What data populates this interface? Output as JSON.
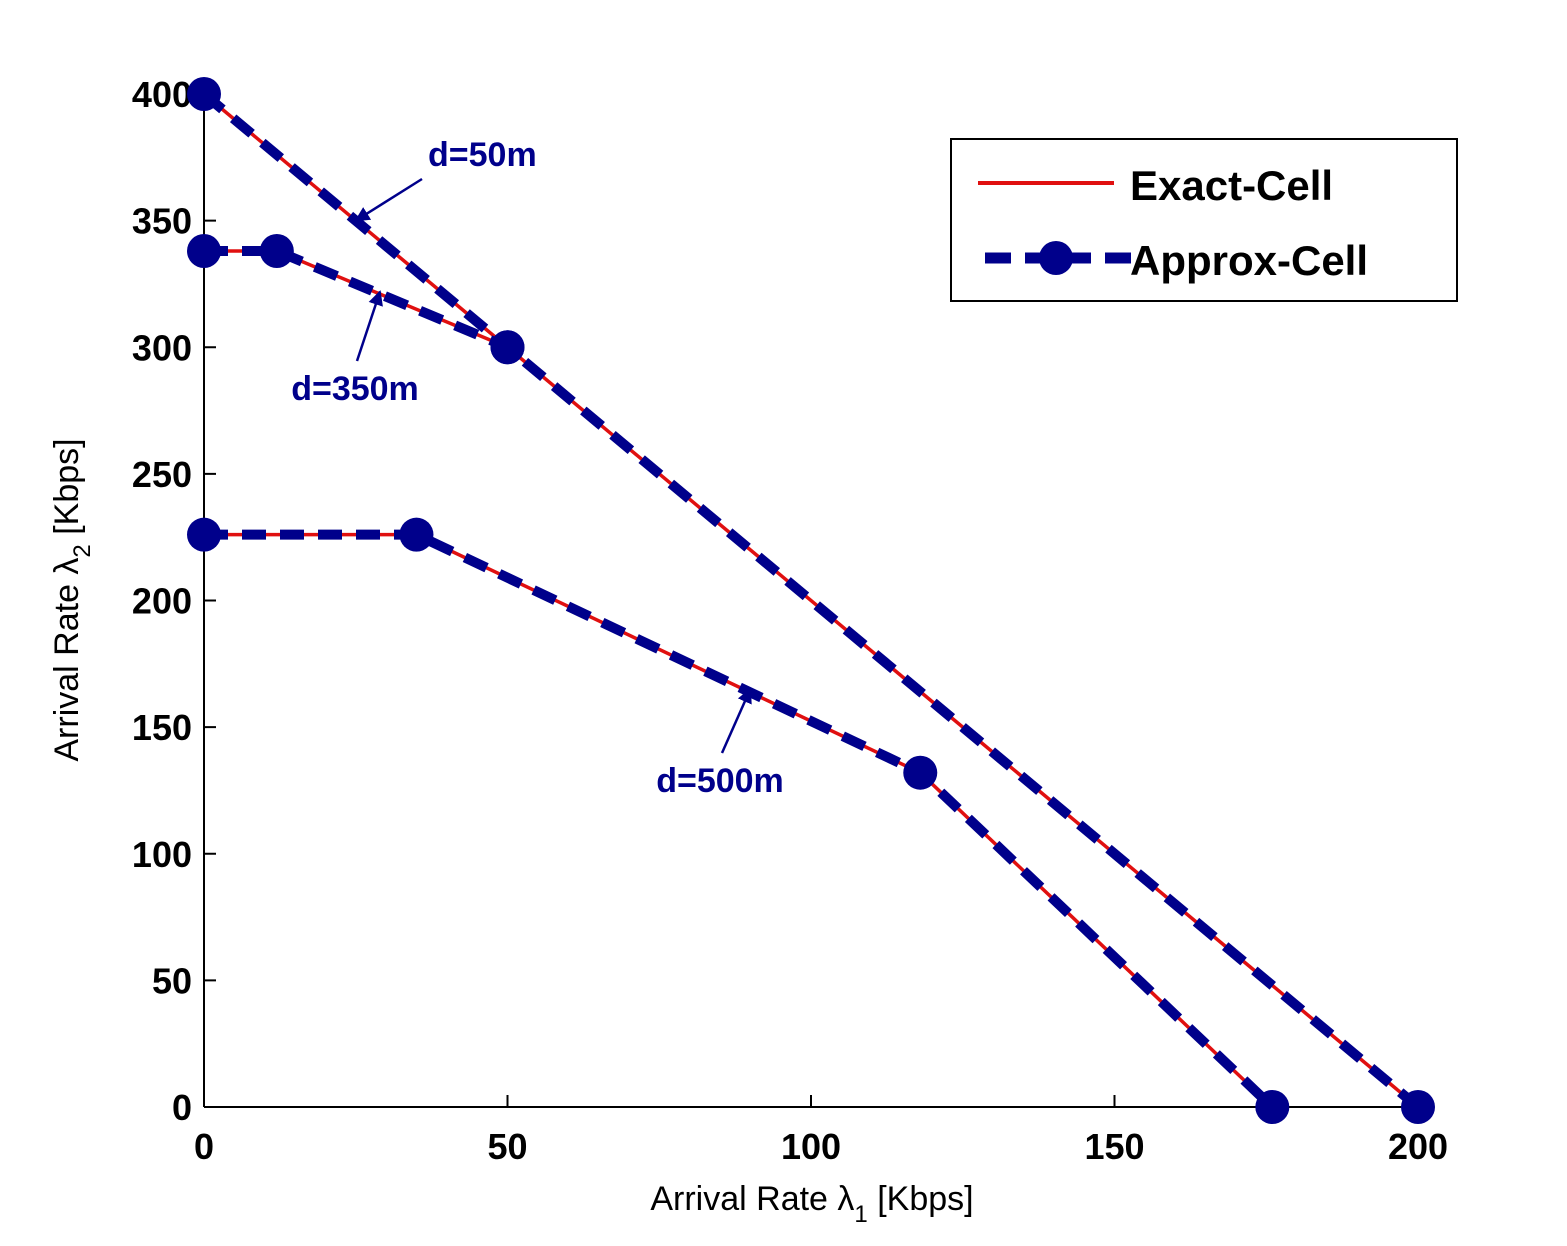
{
  "chart_data": {
    "type": "line",
    "xlabel_prefix": "Arrival Rate λ",
    "xlabel_sub": "1",
    "xlabel_suffix": " [Kbps]",
    "ylabel_prefix": "Arrival  Rate λ",
    "ylabel_sub": "2",
    "ylabel_suffix": " [Kbps]",
    "xlim": [
      0,
      200
    ],
    "ylim": [
      0,
      400
    ],
    "xticks": [
      0,
      50,
      100,
      150,
      200
    ],
    "yticks": [
      0,
      50,
      100,
      150,
      200,
      250,
      300,
      350,
      400
    ],
    "legend_position": "top-right",
    "colors": {
      "exact": "#e01010",
      "approx": "#00008b",
      "annotation": "#00008b"
    },
    "series": [
      {
        "name": "Exact-Cell",
        "style": "solid",
        "curve": "d=50m",
        "x": [
          0,
          50,
          200
        ],
        "y": [
          400,
          300,
          0
        ]
      },
      {
        "name": "Exact-Cell",
        "style": "solid",
        "curve": "d=350m",
        "x": [
          0,
          12,
          50
        ],
        "y": [
          338,
          338,
          300
        ]
      },
      {
        "name": "Exact-Cell",
        "style": "solid",
        "curve": "d=500m",
        "x": [
          0,
          35,
          118,
          176
        ],
        "y": [
          226,
          226,
          132,
          0
        ]
      },
      {
        "name": "Approx-Cell",
        "style": "dashed-markers",
        "curve": "d=50m",
        "x": [
          0,
          50,
          200
        ],
        "y": [
          400,
          300,
          0
        ]
      },
      {
        "name": "Approx-Cell",
        "style": "dashed-markers",
        "curve": "d=350m",
        "x": [
          0,
          12,
          50
        ],
        "y": [
          338,
          338,
          300
        ]
      },
      {
        "name": "Approx-Cell",
        "style": "dashed-markers",
        "curve": "d=500m",
        "x": [
          0,
          35,
          118,
          176
        ],
        "y": [
          226,
          226,
          132,
          0
        ]
      }
    ],
    "legend": [
      "Exact-Cell",
      "Approx-Cell"
    ],
    "annotations": [
      {
        "text": "d=50m",
        "target": [
          25,
          350
        ]
      },
      {
        "text": "d=350m",
        "target": [
          29,
          322
        ]
      },
      {
        "text": "d=500m",
        "target": [
          90,
          165
        ]
      }
    ]
  }
}
